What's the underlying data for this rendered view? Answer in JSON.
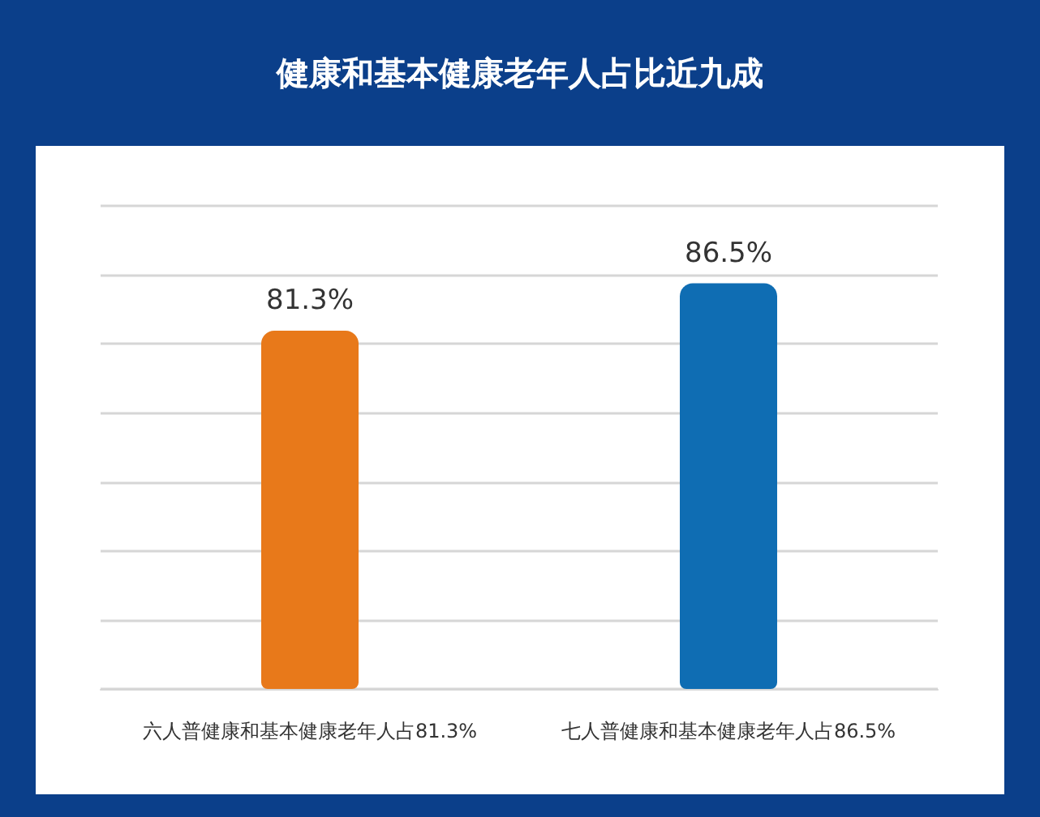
{
  "chart_data": {
    "type": "bar",
    "title": "健康和基本健康老年人占比近九成",
    "categories": [
      "六人普健康和基本健康老年人占81.3%",
      "七人普健康和基本健康老年人占86.5%"
    ],
    "values": [
      81.3,
      86.5
    ],
    "colors": [
      "#e8791a",
      "#0f6db3"
    ],
    "value_labels": [
      "81.3%",
      "86.5%"
    ],
    "ylim": [
      42,
      95
    ],
    "yticks": [
      {
        "value": 42,
        "label": null
      },
      {
        "value": 49.57,
        "label": null
      },
      {
        "value": 57.14,
        "label": null
      },
      {
        "value": 64.71,
        "label": null
      },
      {
        "value": 72.29,
        "label": null
      },
      {
        "value": 79.86,
        "label": null
      },
      {
        "value": 87.43,
        "label": null
      },
      {
        "value": 95,
        "label": null
      }
    ],
    "grid": "y"
  }
}
